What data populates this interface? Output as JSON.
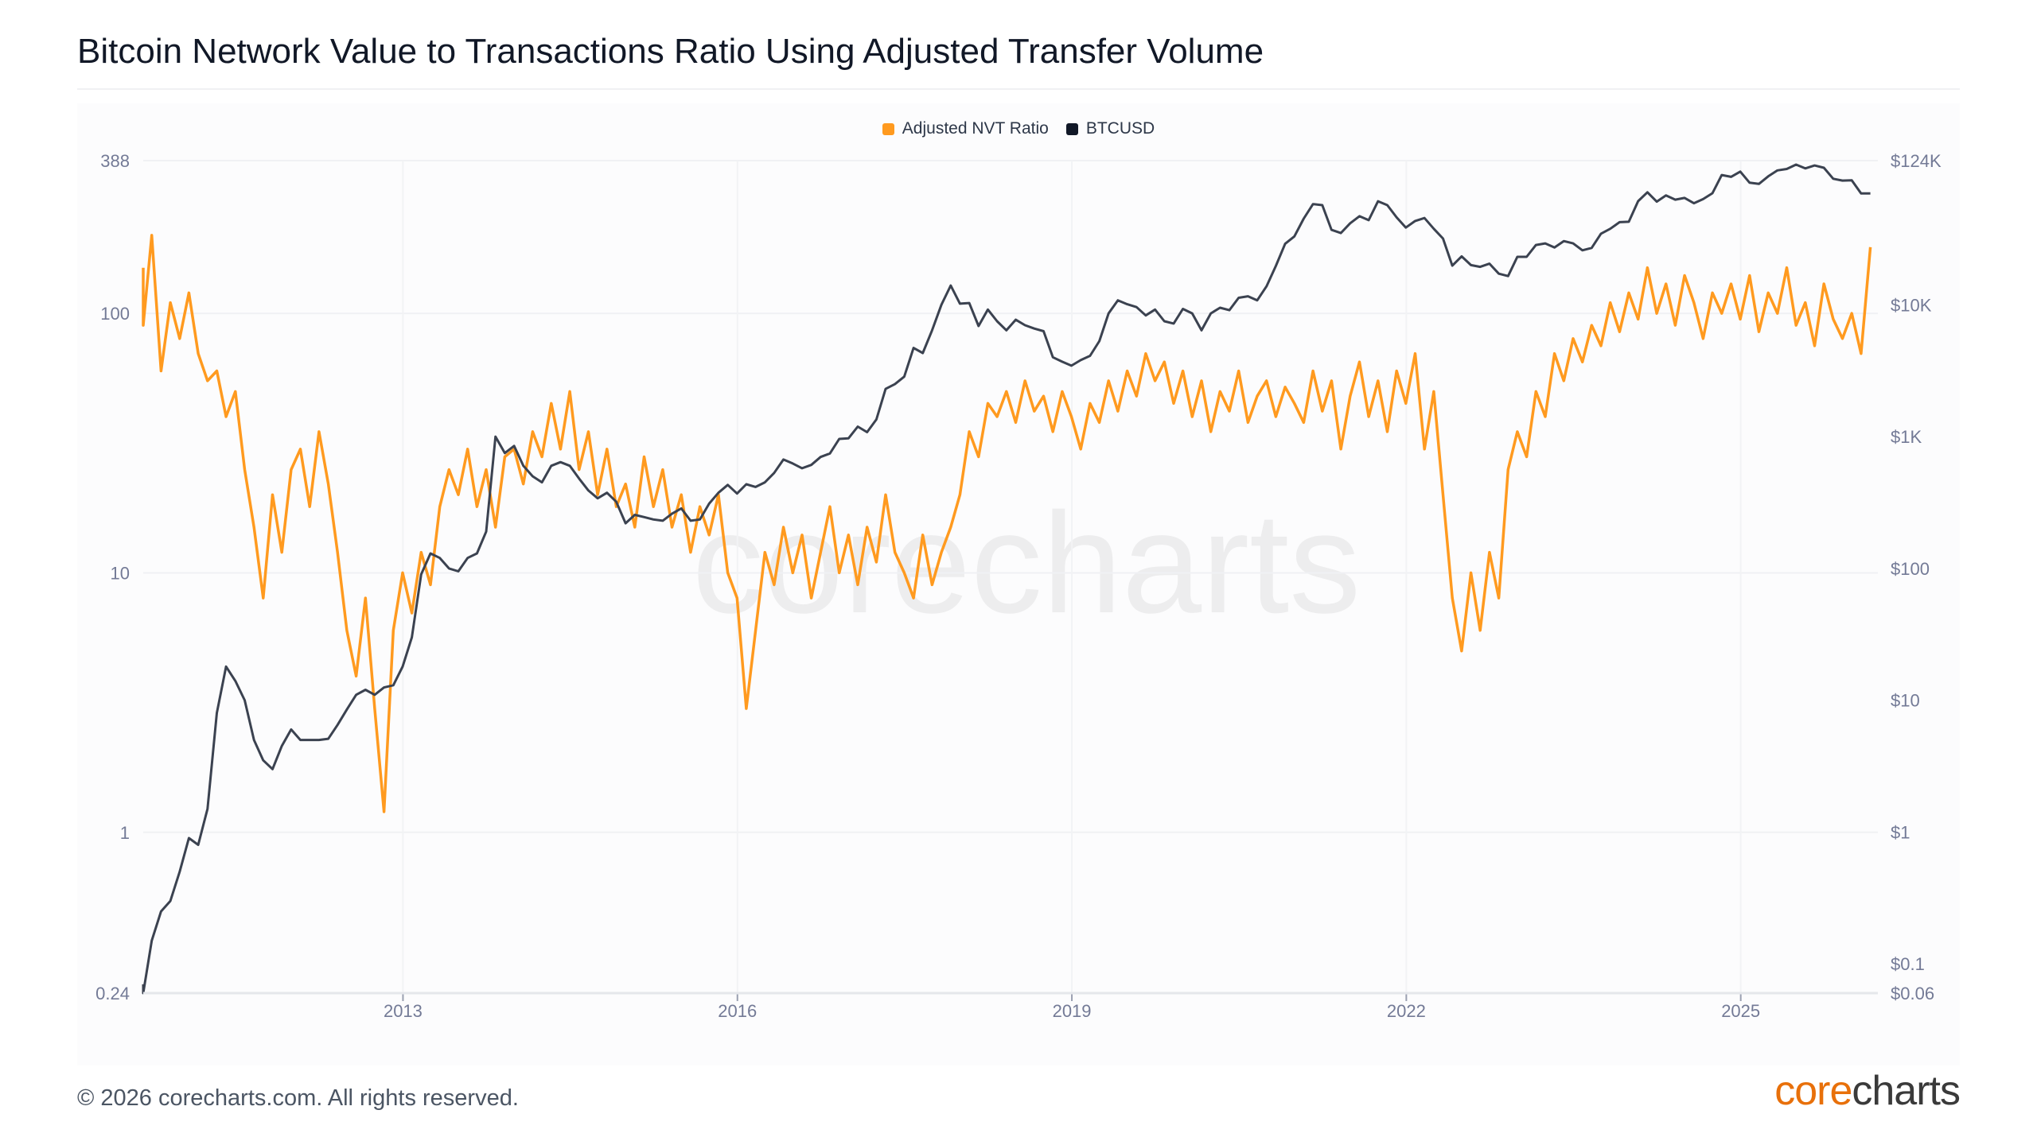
{
  "chart_data": {
    "type": "line",
    "title": "Bitcoin Network Value to Transactions Ratio Using Adjusted Transfer Volume",
    "legend": {
      "placement": "top-center",
      "entries": [
        "Adjusted NVT Ratio",
        "BTCUSD"
      ]
    },
    "colors": {
      "nvt": "#ff9a1f",
      "btc": "#3b4250"
    },
    "x_start": 2010.58,
    "x_step_years": 0.08333,
    "xlim": [
      2010.67,
      2026.23
    ],
    "x_ticks": [
      "2013",
      "2016",
      "2019",
      "2022",
      "2025"
    ],
    "x_tick_values": [
      2013,
      2016,
      2019,
      2022,
      2025
    ],
    "y_left": {
      "scale": "log",
      "ylim": [
        0.24,
        388
      ],
      "ticks": [
        "388",
        "100",
        "10",
        "1",
        "0.24"
      ],
      "tick_values": [
        388,
        100,
        10,
        1,
        0.24
      ]
    },
    "y_right": {
      "scale": "log",
      "ylim": [
        0.06,
        124000
      ],
      "ticks": [
        "$124K",
        "$10K",
        "$1K",
        "$100",
        "$10",
        "$1",
        "$0.1",
        "$0.06"
      ],
      "tick_values": [
        124000,
        10000,
        1000,
        100,
        10,
        1,
        0.1,
        0.06
      ]
    },
    "grid": true,
    "series": [
      {
        "name": "Adjusted NVT Ratio",
        "axis": "left",
        "values": [
          150,
          90,
          200,
          60,
          110,
          80,
          120,
          70,
          55,
          60,
          40,
          50,
          25,
          15,
          8,
          20,
          12,
          25,
          30,
          18,
          35,
          22,
          12,
          6,
          4,
          8,
          3,
          1.2,
          6,
          10,
          7,
          12,
          9,
          18,
          25,
          20,
          30,
          18,
          25,
          15,
          28,
          30,
          22,
          35,
          28,
          45,
          30,
          50,
          25,
          35,
          20,
          30,
          18,
          22,
          15,
          28,
          18,
          25,
          15,
          20,
          12,
          18,
          14,
          20,
          10,
          8,
          3,
          6,
          12,
          9,
          15,
          10,
          14,
          8,
          12,
          18,
          10,
          14,
          9,
          15,
          11,
          20,
          12,
          10,
          8,
          14,
          9,
          12,
          15,
          20,
          35,
          28,
          45,
          40,
          50,
          38,
          55,
          42,
          48,
          35,
          50,
          40,
          30,
          45,
          38,
          55,
          42,
          60,
          48,
          70,
          55,
          65,
          45,
          60,
          40,
          55,
          35,
          50,
          42,
          60,
          38,
          48,
          55,
          40,
          52,
          45,
          38,
          60,
          42,
          55,
          30,
          48,
          65,
          40,
          55,
          35,
          60,
          45,
          70,
          30,
          50,
          20,
          8,
          5,
          10,
          6,
          12,
          8,
          25,
          35,
          28,
          50,
          40,
          70,
          55,
          80,
          65,
          90,
          75,
          110,
          85,
          120,
          95,
          150,
          100,
          130,
          90,
          140,
          110,
          80,
          120,
          100,
          130,
          95,
          140,
          85,
          120,
          100,
          150,
          90,
          110,
          75,
          130,
          95,
          80,
          100,
          70,
          180
        ]
      },
      {
        "name": "BTCUSD",
        "axis": "right",
        "values": [
          0.07,
          0.06,
          0.15,
          0.25,
          0.3,
          0.5,
          0.9,
          0.8,
          1.5,
          8,
          18,
          14,
          10,
          5,
          3.5,
          3,
          4.5,
          6,
          5,
          5,
          5,
          5.1,
          6.5,
          8.5,
          11,
          12,
          11,
          12.5,
          13,
          18,
          30,
          90,
          130,
          120,
          100,
          95,
          120,
          130,
          190,
          1000,
          750,
          850,
          600,
          500,
          450,
          600,
          640,
          600,
          480,
          390,
          340,
          375,
          320,
          220,
          255,
          245,
          235,
          230,
          260,
          285,
          230,
          235,
          310,
          375,
          430,
          370,
          435,
          415,
          450,
          530,
          670,
          625,
          575,
          610,
          700,
          745,
          960,
          970,
          1190,
          1080,
          1350,
          2300,
          2500,
          2850,
          4700,
          4300,
          6400,
          10000,
          14000,
          10200,
          10300,
          6900,
          9200,
          7500,
          6400,
          7700,
          7000,
          6600,
          6300,
          4000,
          3700,
          3450,
          3800,
          4100,
          5300,
          8600,
          10800,
          10100,
          9600,
          8300,
          9200,
          7500,
          7200,
          9300,
          8600,
          6400,
          8600,
          9500,
          9100,
          11300,
          11600,
          10800,
          13800,
          19700,
          29000,
          33000,
          45000,
          58000,
          57000,
          37000,
          35000,
          41500,
          47000,
          43800,
          61000,
          57000,
          46000,
          38500,
          43200,
          45500,
          37700,
          31800,
          19800,
          23300,
          20000,
          19400,
          20500,
          17200,
          16500,
          23100,
          23100,
          28400,
          29200,
          27200,
          30400,
          29200,
          25900,
          27000,
          34600,
          37700,
          42300,
          42600,
          61100,
          71300,
          60600,
          67500,
          62700,
          64600,
          58900,
          63300,
          70200,
          96400,
          93400,
          102400,
          84300,
          82500,
          94200,
          104600,
          107100,
          115700,
          108200,
          114000,
          109500,
          90400,
          87500,
          88000,
          70000,
          70000
        ]
      }
    ]
  },
  "watermark": "corecharts",
  "footer": {
    "copyright": "© 2026 corecharts.com. All rights reserved."
  },
  "logo": {
    "part1": "core",
    "part2": "charts"
  }
}
